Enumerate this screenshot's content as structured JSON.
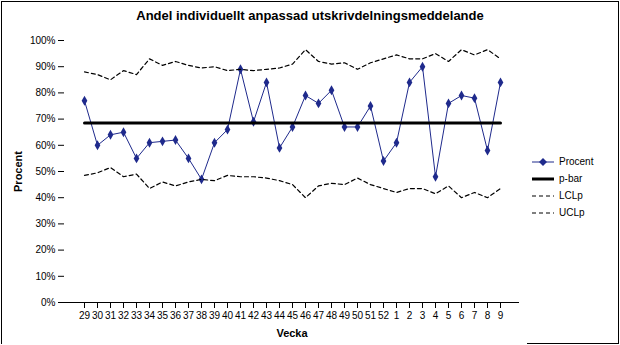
{
  "chart_data": {
    "type": "line",
    "title": "Andel individuellt anpassad utskrivdelningsmeddelande",
    "x_label": "Vecka",
    "y_label": "Procent",
    "categories": [
      "29",
      "30",
      "31",
      "32",
      "33",
      "34",
      "35",
      "36",
      "37",
      "38",
      "39",
      "40",
      "41",
      "42",
      "43",
      "44",
      "45",
      "46",
      "47",
      "48",
      "49",
      "50",
      "51",
      "52",
      "1",
      "2",
      "3",
      "4",
      "5",
      "6",
      "7",
      "8",
      "9"
    ],
    "series": [
      {
        "name": "Procent",
        "color": "#1f2a8c",
        "marker": "diamond",
        "line_style": "solid",
        "values": [
          77,
          60,
          64,
          65,
          55,
          61,
          61.5,
          62,
          55,
          47,
          61,
          66,
          89,
          69,
          84,
          59,
          67,
          79,
          76,
          81,
          67,
          67,
          75,
          54,
          61,
          84,
          90,
          48,
          76,
          79,
          78,
          58,
          84
        ]
      },
      {
        "name": "p-bar",
        "color": "#000000",
        "line_style": "solid",
        "values": [
          68.5,
          68.5,
          68.5,
          68.5,
          68.5,
          68.5,
          68.5,
          68.5,
          68.5,
          68.5,
          68.5,
          68.5,
          68.5,
          68.5,
          68.5,
          68.5,
          68.5,
          68.5,
          68.5,
          68.5,
          68.5,
          68.5,
          68.5,
          68.5,
          68.5,
          68.5,
          68.5,
          68.5,
          68.5,
          68.5,
          68.5,
          68.5,
          68.5
        ]
      },
      {
        "name": "LCLp",
        "color": "#000000",
        "line_style": "dashed",
        "values": [
          48.5,
          49.5,
          51.5,
          48,
          49,
          43.5,
          46,
          44.5,
          46,
          47,
          46.5,
          48.5,
          48,
          48,
          47.5,
          46.5,
          45,
          40,
          44.5,
          45.5,
          45,
          47.5,
          45,
          43.5,
          42,
          43.5,
          43.5,
          41.5,
          44.5,
          40,
          42,
          40,
          43.5
        ]
      },
      {
        "name": "UCLp",
        "color": "#000000",
        "line_style": "dashed",
        "values": [
          88,
          87,
          85,
          88.5,
          87,
          93,
          90.5,
          92,
          90.5,
          89.5,
          90,
          88.5,
          89,
          88.5,
          89,
          89.5,
          91,
          96.5,
          92,
          91,
          91.5,
          89,
          91.5,
          93,
          94.5,
          93,
          93,
          95,
          92,
          96.5,
          94.5,
          96.5,
          93
        ]
      }
    ],
    "ylim": [
      0,
      100
    ],
    "yticks": [
      {
        "value": 0,
        "label": "0%"
      },
      {
        "value": 10,
        "label": "10%"
      },
      {
        "value": 20,
        "label": "20%"
      },
      {
        "value": 30,
        "label": "30%"
      },
      {
        "value": 40,
        "label": "40%"
      },
      {
        "value": 50,
        "label": "50%"
      },
      {
        "value": 60,
        "label": "60%"
      },
      {
        "value": 70,
        "label": "70%"
      },
      {
        "value": 80,
        "label": "80%"
      },
      {
        "value": 90,
        "label": "90%"
      },
      {
        "value": 100,
        "label": "100%"
      }
    ],
    "grid": false,
    "legend": "right"
  }
}
